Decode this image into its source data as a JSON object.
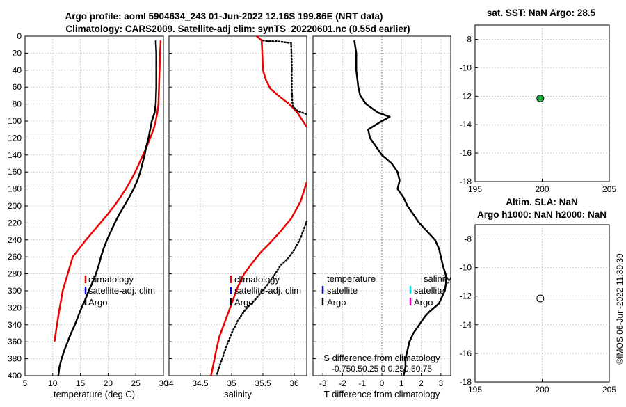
{
  "header": {
    "title_line1": "Argo profile: aoml 5904634_243 01-Jun-2022 12.16S 199.86E (NRT data)",
    "title_line2": "Climatology: CARS2009. Satellite-adj clim: synTS_20220601.nc (0.55d earlier)"
  },
  "timestamp": "©IMOS 06-Jun-2022 11:39:39",
  "colors": {
    "argo": "#000000",
    "climatology": "#ee0000",
    "satellite": "#0000ee",
    "cyan": "#00dddd",
    "magenta": "#ee00bb",
    "green_marker": "#22aa44"
  },
  "chart_data": [
    {
      "id": "temperature",
      "type": "line",
      "xlabel": "temperature (deg C)",
      "ylabel": "",
      "xlim": [
        5,
        30
      ],
      "ylim": [
        0,
        400
      ],
      "y_reversed": true,
      "xticks": [
        5,
        10,
        15,
        20,
        25,
        30
      ],
      "yticks": [
        0,
        20,
        40,
        60,
        80,
        100,
        120,
        140,
        160,
        180,
        200,
        220,
        240,
        260,
        280,
        300,
        320,
        340,
        360,
        380,
        400
      ],
      "series": [
        {
          "name": "climatology",
          "color": "#ee0000",
          "style": "solid",
          "x": [
            29.5,
            29.4,
            29.3,
            29.2,
            29.1,
            28.9,
            28.6,
            28.2,
            27.6,
            27.0,
            26.3,
            25.6,
            24.9,
            24.1,
            23.2,
            22.2,
            21.1,
            19.9,
            18.6,
            17.3,
            16.0,
            14.8,
            13.6,
            12.7,
            11.8,
            11.0,
            10.3
          ],
          "y": [
            5,
            20,
            40,
            60,
            80,
            90,
            100,
            110,
            120,
            130,
            140,
            150,
            160,
            170,
            180,
            190,
            200,
            210,
            220,
            230,
            240,
            250,
            260,
            280,
            300,
            330,
            360
          ]
        },
        {
          "name": "Argo",
          "color": "#000000",
          "style": "solid",
          "x": [
            28.6,
            28.7,
            28.7,
            28.7,
            28.6,
            28.4,
            27.9,
            27.6,
            27.3,
            26.9,
            26.6,
            26.2,
            25.8,
            25.3,
            24.6,
            23.8,
            22.9,
            22.0,
            21.2,
            20.5,
            19.8,
            19.2,
            18.7,
            18.3,
            17.8,
            17.2,
            16.5,
            15.9,
            15.2,
            14.6,
            14.0,
            13.3,
            12.7,
            12.1,
            11.6,
            11.2,
            11.0
          ],
          "y": [
            5,
            20,
            40,
            60,
            80,
            90,
            100,
            110,
            120,
            130,
            140,
            150,
            160,
            170,
            180,
            190,
            200,
            210,
            220,
            230,
            240,
            250,
            260,
            270,
            280,
            290,
            300,
            310,
            320,
            330,
            340,
            350,
            360,
            370,
            380,
            390,
            400
          ]
        }
      ],
      "legend": {
        "position": "lower-right",
        "entries": [
          "climatology",
          "satellite-adj. clim",
          "Argo"
        ]
      }
    },
    {
      "id": "salinity",
      "type": "line",
      "xlabel": "salinity",
      "ylabel": "",
      "xlim": [
        34,
        36.2
      ],
      "ylim": [
        0,
        400
      ],
      "y_reversed": true,
      "xticks": [
        34,
        34.5,
        35,
        35.5,
        36
      ],
      "series": [
        {
          "name": "climatology (upper)",
          "color": "#ee0000",
          "style": "solid",
          "x": [
            35.4,
            35.48,
            35.49,
            35.5,
            35.55,
            35.62,
            35.78,
            35.92,
            36.05,
            36.2
          ],
          "y": [
            0,
            5,
            20,
            40,
            52,
            62,
            72,
            80,
            90,
            107
          ]
        },
        {
          "name": "climatology (lower)",
          "color": "#ee0000",
          "style": "solid",
          "x": [
            36.2,
            36.1,
            35.95,
            35.78,
            35.62,
            35.46,
            35.32,
            35.2,
            35.1,
            35.0,
            34.9,
            34.8,
            34.74,
            34.7,
            34.67
          ],
          "y": [
            172,
            195,
            215,
            230,
            243,
            255,
            268,
            280,
            295,
            315,
            335,
            355,
            375,
            390,
            400
          ]
        },
        {
          "name": "satellite-adj. clim (upper)",
          "color": "#000000",
          "style": "dotted",
          "x": [
            35.5,
            35.58,
            35.72,
            35.95,
            35.96,
            35.96,
            35.97,
            35.98,
            36.05,
            36.2
          ],
          "y": [
            5,
            6,
            6,
            8,
            30,
            60,
            78,
            83,
            88,
            92
          ]
        },
        {
          "name": "satellite-adj. clim (lower)",
          "color": "#000000",
          "style": "dotted",
          "x": [
            36.2,
            36.1,
            36.0,
            35.9,
            35.78,
            35.68,
            35.55,
            35.38,
            35.22,
            35.1,
            35.0,
            34.92,
            34.85,
            34.8,
            34.76
          ],
          "y": [
            218,
            238,
            252,
            262,
            270,
            282,
            295,
            310,
            322,
            335,
            350,
            365,
            380,
            390,
            400
          ]
        }
      ],
      "legend": {
        "position": "lower-right",
        "entries": [
          "climatology",
          "satellite-adj. clim",
          "Argo"
        ]
      }
    },
    {
      "id": "difference",
      "type": "line",
      "xlabel": "T difference from climatology",
      "top_label": "S difference from climatology",
      "xlim": [
        -3.5,
        3.5
      ],
      "ylim": [
        0,
        400
      ],
      "y_reversed": true,
      "xticks": [
        -3,
        -2,
        -1,
        0,
        1,
        2,
        3
      ],
      "s_ticks": [
        -0.75,
        -0.5,
        -0.25,
        0,
        0.25,
        0.5,
        0.75
      ],
      "s_ticks_text": "-0.750.50.25  0  0.250.50.75",
      "series": [
        {
          "name": "Argo",
          "color": "#000000",
          "style": "solid",
          "x": [
            -1.4,
            -1.3,
            -1.3,
            -1.2,
            -1.1,
            -0.8,
            -0.2,
            0.4,
            0.0,
            -0.7,
            -0.6,
            -0.3,
            0.0,
            0.5,
            0.8,
            0.9,
            0.8,
            1.1,
            1.3,
            1.6,
            1.9,
            2.3,
            2.7,
            2.9,
            3.1,
            3.3,
            3.2,
            2.9,
            2.4,
            2.2,
            1.9,
            1.6,
            1.4,
            1.3,
            1.2,
            1.2,
            1.1
          ],
          "y": [
            5,
            20,
            40,
            60,
            70,
            80,
            90,
            95,
            100,
            110,
            120,
            130,
            140,
            150,
            160,
            170,
            180,
            190,
            200,
            210,
            220,
            230,
            240,
            250,
            270,
            285,
            300,
            315,
            325,
            330,
            340,
            350,
            360,
            370,
            380,
            390,
            400
          ]
        }
      ],
      "zero_line": "dotted",
      "legend": {
        "temperature": {
          "title": "temperature",
          "entries": [
            "satellite",
            "Argo"
          ]
        },
        "salinity": {
          "title": "salinity",
          "entries": [
            "satellite",
            "Argo"
          ]
        }
      }
    },
    {
      "id": "sst-map",
      "type": "scatter",
      "title": "sat. SST: NaN Argo: 28.5",
      "xlim": [
        195,
        205
      ],
      "ylim": [
        -18,
        -7
      ],
      "xticks": [
        195,
        200,
        205
      ],
      "yticks": [
        -8,
        -10,
        -12,
        -14,
        -16,
        -18
      ],
      "points": [
        {
          "x": 199.86,
          "y": -12.16,
          "fill": "#22aa44"
        }
      ]
    },
    {
      "id": "sla-map",
      "type": "scatter",
      "title_line1": "Altim. SLA: NaN",
      "title_line2": "Argo h1000: NaN h2000: NaN",
      "xlim": [
        195,
        205
      ],
      "ylim": [
        -18,
        -7
      ],
      "xticks": [
        195,
        200,
        205
      ],
      "yticks": [
        -8,
        -10,
        -12,
        -14,
        -16,
        -18
      ],
      "points": [
        {
          "x": 199.86,
          "y": -12.16,
          "fill": "#ffffff"
        }
      ]
    }
  ]
}
